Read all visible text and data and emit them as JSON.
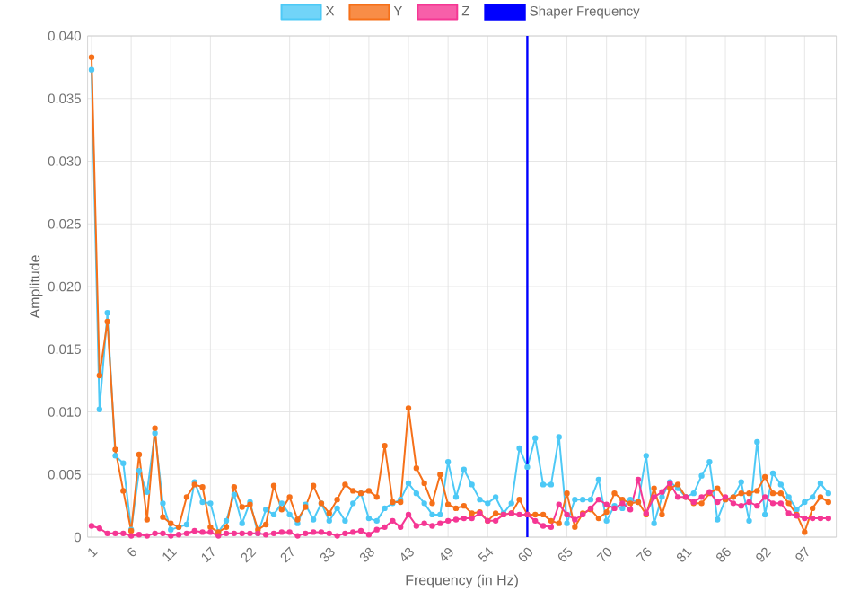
{
  "chart_data": {
    "type": "line",
    "xlabel": "Frequency (in Hz)",
    "ylabel": "Amplitude",
    "categories": [
      "1",
      null,
      null,
      null,
      null,
      "6",
      null,
      null,
      null,
      null,
      "11",
      null,
      null,
      null,
      null,
      "17",
      null,
      null,
      null,
      null,
      "22",
      null,
      null,
      null,
      null,
      "27",
      null,
      null,
      null,
      null,
      "33",
      null,
      null,
      null,
      null,
      "38",
      null,
      null,
      null,
      null,
      "43",
      null,
      null,
      null,
      null,
      "49",
      null,
      null,
      null,
      null,
      "54",
      null,
      null,
      null,
      null,
      "60",
      null,
      null,
      null,
      null,
      "65",
      null,
      null,
      null,
      null,
      "70",
      null,
      null,
      null,
      null,
      "76",
      null,
      null,
      null,
      null,
      "81",
      null,
      null,
      null,
      null,
      "86",
      null,
      null,
      null,
      null,
      "92",
      null,
      null,
      null,
      null,
      "97",
      null,
      null,
      null
    ],
    "series": [
      {
        "name": "X",
        "color": "#4dc9f6",
        "values": [
          0.0373,
          0.0102,
          0.0179,
          0.0065,
          0.0059,
          0.0006,
          0.0053,
          0.0036,
          0.0083,
          0.0027,
          0.0006,
          0.0008,
          0.001,
          0.0044,
          0.0028,
          0.0027,
          0.0004,
          0.0013,
          0.0034,
          0.0011,
          0.0028,
          0.0003,
          0.0022,
          0.0018,
          0.0027,
          0.0018,
          0.0011,
          0.0026,
          0.0014,
          0.0027,
          0.0013,
          0.0023,
          0.0013,
          0.0027,
          0.0035,
          0.0015,
          0.0013,
          0.0023,
          0.0027,
          0.003,
          0.0043,
          0.0035,
          0.0027,
          0.0018,
          0.0018,
          0.006,
          0.0032,
          0.0054,
          0.0042,
          0.003,
          0.0027,
          0.0032,
          0.0019,
          0.0027,
          0.0071,
          0.0056,
          0.0079,
          0.0042,
          0.0042,
          0.008,
          0.0011,
          0.003,
          0.003,
          0.003,
          0.0046,
          0.0013,
          0.0025,
          0.0023,
          0.003,
          0.0028,
          0.0065,
          0.0011,
          0.0032,
          0.0044,
          0.0039,
          0.0032,
          0.0035,
          0.0049,
          0.006,
          0.0014,
          0.003,
          0.0032,
          0.0044,
          0.0013,
          0.0076,
          0.0018,
          0.0051,
          0.0042,
          0.0032,
          0.0022,
          0.0028,
          0.0032,
          0.0043,
          0.0035
        ]
      },
      {
        "name": "Y",
        "color": "#f67019",
        "values": [
          0.0383,
          0.0129,
          0.0172,
          0.007,
          0.0037,
          0.0005,
          0.0066,
          0.0014,
          0.0087,
          0.0016,
          0.0011,
          0.0008,
          0.0032,
          0.0042,
          0.004,
          0.0008,
          0.0004,
          0.0008,
          0.004,
          0.0024,
          0.0026,
          0.0006,
          0.001,
          0.0041,
          0.0022,
          0.0032,
          0.0014,
          0.0024,
          0.0041,
          0.0027,
          0.0019,
          0.003,
          0.0042,
          0.0037,
          0.0035,
          0.0037,
          0.0032,
          0.0073,
          0.0028,
          0.0028,
          0.0103,
          0.0055,
          0.0043,
          0.0027,
          0.005,
          0.0026,
          0.0023,
          0.0025,
          0.0019,
          0.002,
          0.0013,
          0.0019,
          0.0018,
          0.0019,
          0.003,
          0.0018,
          0.0018,
          0.0018,
          0.0013,
          0.0011,
          0.0035,
          0.0008,
          0.0019,
          0.0022,
          0.0015,
          0.002,
          0.0035,
          0.003,
          0.0027,
          0.0028,
          0.0018,
          0.0039,
          0.0018,
          0.0039,
          0.0042,
          0.0032,
          0.0027,
          0.0027,
          0.0035,
          0.0039,
          0.003,
          0.0032,
          0.0035,
          0.0035,
          0.0037,
          0.0048,
          0.0035,
          0.0035,
          0.0027,
          0.0018,
          0.0004,
          0.0023,
          0.0032,
          0.0028
        ]
      },
      {
        "name": "Z",
        "color": "#f53794",
        "values": [
          0.0009,
          0.0007,
          0.0003,
          0.0003,
          0.0003,
          0.0001,
          0.0002,
          0.0001,
          0.0003,
          0.0003,
          0.0001,
          0.0002,
          0.0003,
          0.0005,
          0.0004,
          0.0004,
          0.0001,
          0.0003,
          0.0003,
          0.0003,
          0.0003,
          0.0003,
          0.0002,
          0.0003,
          0.0004,
          0.0004,
          0.0001,
          0.0003,
          0.0004,
          0.0004,
          0.0003,
          0.0001,
          0.0003,
          0.0004,
          0.0005,
          0.0002,
          0.0006,
          0.0008,
          0.0013,
          0.0008,
          0.0018,
          0.0009,
          0.0011,
          0.0009,
          0.0011,
          0.0013,
          0.0014,
          0.0015,
          0.0015,
          0.0019,
          0.0013,
          0.0013,
          0.0018,
          0.0019,
          0.0018,
          0.0018,
          0.0013,
          0.0009,
          0.0008,
          0.0026,
          0.0018,
          0.0014,
          0.0018,
          0.0023,
          0.003,
          0.0026,
          0.0023,
          0.0027,
          0.0022,
          0.0046,
          0.0019,
          0.0032,
          0.0036,
          0.0043,
          0.0032,
          0.0032,
          0.0028,
          0.0032,
          0.0036,
          0.0028,
          0.0032,
          0.0027,
          0.0025,
          0.0028,
          0.0025,
          0.0032,
          0.0027,
          0.0027,
          0.0019,
          0.0017,
          0.0015,
          0.0015,
          0.0015,
          0.0015
        ]
      }
    ],
    "ref_lines": [
      {
        "axis": "x",
        "value": "60",
        "label": "Shaper Frequency",
        "color": "#0000ff"
      }
    ],
    "ylim": [
      0,
      0.04
    ],
    "yticks": [
      0,
      {
        "value": 0.005,
        "label": "0.005"
      },
      {
        "value": 0.01,
        "label": "0.010"
      },
      {
        "value": 0.015,
        "label": "0.015"
      },
      {
        "value": 0.02,
        "label": "0.020"
      },
      {
        "value": 0.025,
        "label": "0.025"
      },
      {
        "value": 0.03,
        "label": "0.030"
      },
      {
        "value": 0.035,
        "label": "0.035"
      },
      {
        "value": 0.04,
        "label": "0.040"
      }
    ],
    "grid": true,
    "legend": "top",
    "marker": "circle",
    "line_style": "solid"
  }
}
